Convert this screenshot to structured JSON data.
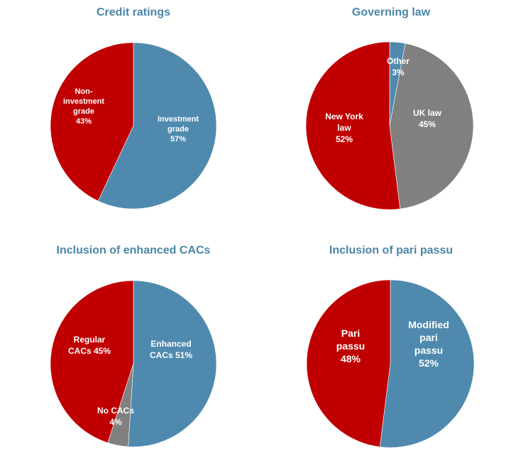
{
  "colors": {
    "red": "#C00000",
    "blue": "#4F8AAE",
    "gray": "#808080",
    "title": "#4A86A8",
    "label": "#FFFFFF"
  },
  "chart_data": [
    {
      "type": "pie",
      "title": "Credit ratings",
      "start_angle_deg": 0,
      "direction": "clockwise",
      "slices": [
        {
          "label": "Investment grade",
          "value": 57,
          "color": "blue",
          "text_lines": [
            "Investment",
            "grade",
            "57%"
          ]
        },
        {
          "label": "Non-investment grade",
          "value": 43,
          "color": "red",
          "text_lines": [
            "Non-",
            "investment",
            "grade",
            "43%"
          ]
        }
      ]
    },
    {
      "type": "pie",
      "title": "Governing law",
      "start_angle_deg": 0,
      "direction": "clockwise",
      "slices": [
        {
          "label": "Other",
          "value": 3,
          "color": "blue",
          "text_lines": [
            "Other",
            "3%"
          ]
        },
        {
          "label": "UK law",
          "value": 45,
          "color": "gray",
          "text_lines": [
            "UK law",
            "45%"
          ]
        },
        {
          "label": "New York law",
          "value": 52,
          "color": "red",
          "text_lines": [
            "New York",
            "law",
            "52%"
          ]
        }
      ]
    },
    {
      "type": "pie",
      "title": "Inclusion of enhanced CACs",
      "start_angle_deg": 0,
      "direction": "clockwise",
      "slices": [
        {
          "label": "Enhanced CACs",
          "value": 51,
          "color": "blue",
          "text_lines": [
            "Enhanced",
            "CACs 51%"
          ]
        },
        {
          "label": "No CACs",
          "value": 4,
          "color": "gray",
          "text_lines": [
            "No CACs",
            "4%"
          ]
        },
        {
          "label": "Regular CACs",
          "value": 45,
          "color": "red",
          "text_lines": [
            "Regular",
            "CACs 45%"
          ]
        }
      ]
    },
    {
      "type": "pie",
      "title": "Inclusion of pari passu",
      "start_angle_deg": 0,
      "direction": "clockwise",
      "slices": [
        {
          "label": "Modified pari passu",
          "value": 52,
          "color": "blue",
          "text_lines": [
            "Modified",
            "pari",
            "passu",
            "52%"
          ]
        },
        {
          "label": "Pari passu",
          "value": 48,
          "color": "red",
          "text_lines": [
            "Pari",
            "passu",
            "48%"
          ]
        }
      ]
    }
  ]
}
